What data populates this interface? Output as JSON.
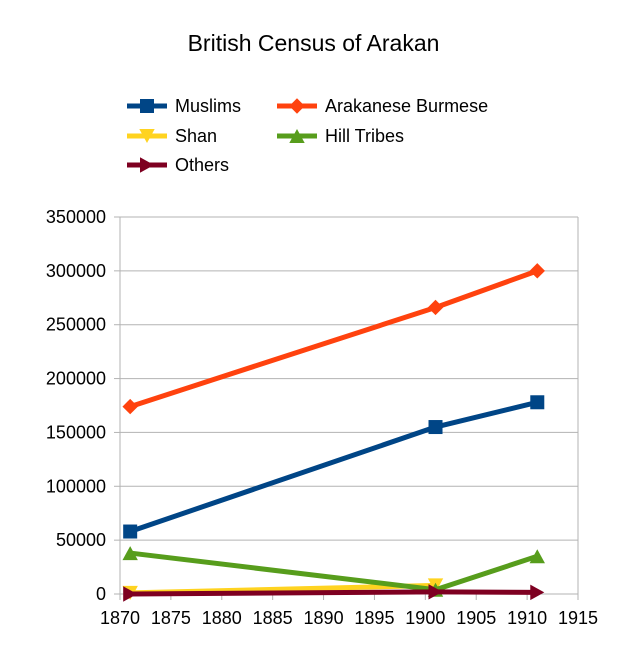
{
  "chart_data": {
    "type": "line",
    "title": "British Census of Arakan",
    "xlabel": "",
    "ylabel": "",
    "xlim": [
      1870,
      1915
    ],
    "ylim": [
      0,
      350000
    ],
    "x_ticks": [
      "1870",
      "1875",
      "1880",
      "1885",
      "1890",
      "1895",
      "1900",
      "1905",
      "1910",
      "1915"
    ],
    "y_ticks": [
      "0",
      "50000",
      "100000",
      "150000",
      "200000",
      "250000",
      "300000",
      "350000"
    ],
    "grid": "horizontal",
    "legend_position": "top",
    "series": [
      {
        "name": "Muslims",
        "color": "#004586",
        "marker": "square",
        "points": [
          {
            "x": 1871,
            "y": 58000
          },
          {
            "x": 1901,
            "y": 155000
          },
          {
            "x": 1911,
            "y": 178000
          }
        ]
      },
      {
        "name": "Arakanese Burmese",
        "color": "#ff420e",
        "marker": "diamond",
        "points": [
          {
            "x": 1871,
            "y": 174000
          },
          {
            "x": 1901,
            "y": 266000
          },
          {
            "x": 1911,
            "y": 300000
          }
        ]
      },
      {
        "name": "Shan",
        "color": "#ffd320",
        "marker": "triangle-down",
        "points": [
          {
            "x": 1871,
            "y": 1000
          },
          {
            "x": 1901,
            "y": 8000
          }
        ]
      },
      {
        "name": "Hill Tribes",
        "color": "#579d1c",
        "marker": "triangle-up",
        "points": [
          {
            "x": 1871,
            "y": 38000
          },
          {
            "x": 1901,
            "y": 4000
          },
          {
            "x": 1911,
            "y": 35000
          }
        ]
      },
      {
        "name": "Others",
        "color": "#7e0021",
        "marker": "triangle-right",
        "points": [
          {
            "x": 1871,
            "y": 0
          },
          {
            "x": 1901,
            "y": 2000
          },
          {
            "x": 1911,
            "y": 1500
          }
        ]
      }
    ]
  }
}
